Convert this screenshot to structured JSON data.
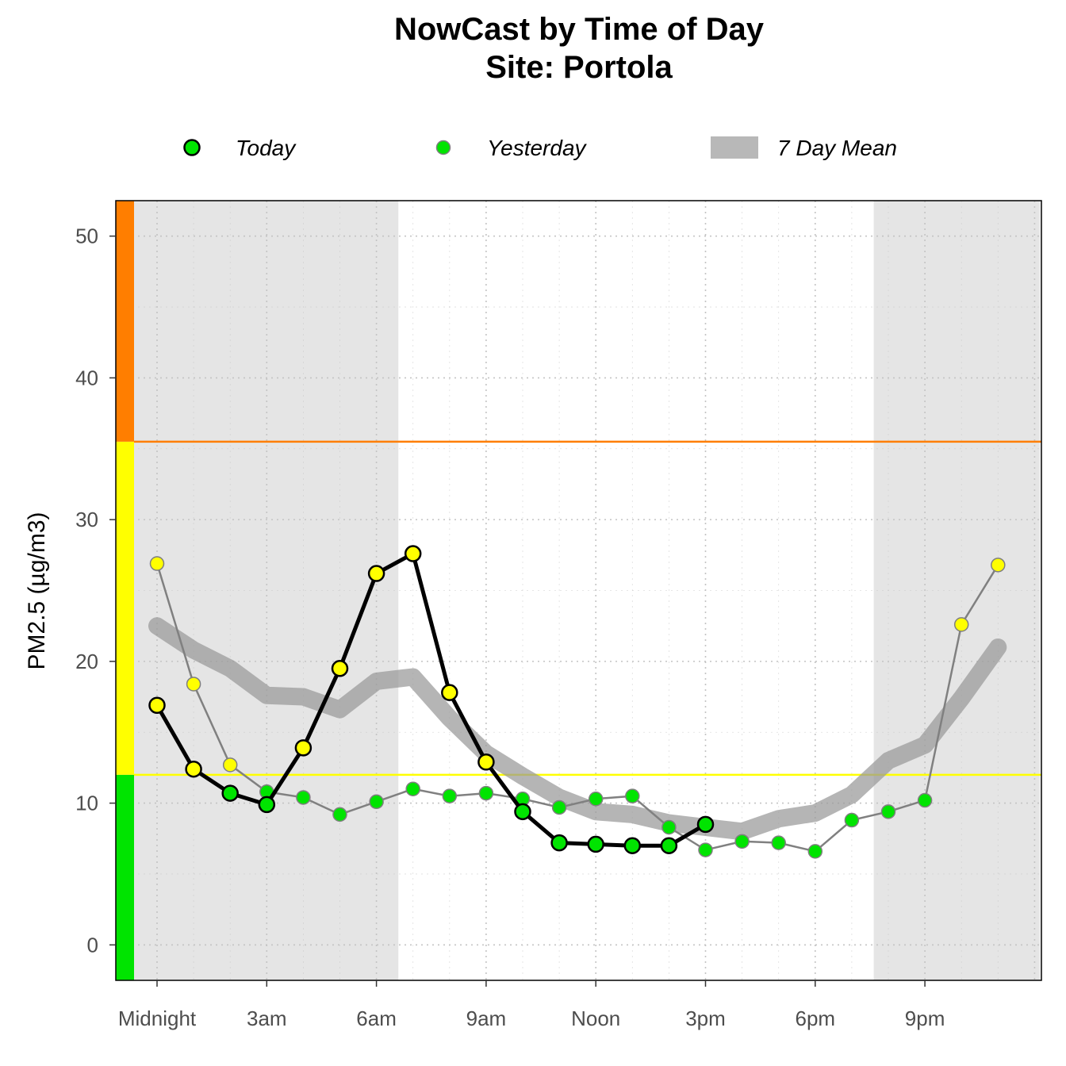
{
  "chart_data": {
    "type": "line",
    "title": "NowCast by Time of Day",
    "subtitle": "Site: Portola",
    "ylabel": "PM2.5 (µg/m3)",
    "xlabel": "",
    "ylim": [
      -2.5,
      52.5
    ],
    "yticks": [
      0,
      10,
      20,
      30,
      40,
      50
    ],
    "xticks": [
      {
        "hour": 0,
        "label": "Midnight"
      },
      {
        "hour": 3,
        "label": "3am"
      },
      {
        "hour": 6,
        "label": "6am"
      },
      {
        "hour": 9,
        "label": "9am"
      },
      {
        "hour": 12,
        "label": "Noon"
      },
      {
        "hour": 15,
        "label": "3pm"
      },
      {
        "hour": 18,
        "label": "6pm"
      },
      {
        "hour": 21,
        "label": "9pm"
      }
    ],
    "night_shading": [
      [
        -1.15,
        6.6
      ],
      [
        19.6,
        24.15
      ]
    ],
    "aqi_thresholds": [
      {
        "value": 12.0,
        "color": "#ffff00"
      },
      {
        "value": 35.5,
        "color": "#ff7e00"
      }
    ],
    "aqi_bands": [
      {
        "from": -2.5,
        "to": 12.0,
        "color": "#00e400"
      },
      {
        "from": 12.0,
        "to": 35.5,
        "color": "#ffff00"
      },
      {
        "from": 35.5,
        "to": 52.5,
        "color": "#ff7e00"
      }
    ],
    "legend": [
      {
        "label": "Today",
        "kind": "point-bold"
      },
      {
        "label": "Yesterday",
        "kind": "point"
      },
      {
        "label": "7 Day Mean",
        "kind": "band"
      }
    ],
    "series": [
      {
        "name": "7 Day Mean",
        "color": "#999999",
        "x": [
          0,
          1,
          2,
          3,
          4,
          5,
          6,
          7,
          8,
          9,
          10,
          11,
          12,
          13,
          14,
          15,
          16,
          17,
          18,
          19,
          20,
          21,
          22,
          23
        ],
        "values": [
          22.5,
          20.8,
          19.5,
          17.6,
          17.5,
          16.6,
          18.6,
          18.9,
          16.0,
          13.5,
          11.9,
          10.4,
          9.4,
          9.2,
          8.6,
          8.3,
          8.0,
          8.9,
          9.3,
          10.6,
          13.0,
          14.1,
          17.4,
          21.0
        ]
      },
      {
        "name": "Yesterday",
        "color": "#7f7f7f",
        "x": [
          0,
          1,
          2,
          3,
          4,
          5,
          6,
          7,
          8,
          9,
          10,
          11,
          12,
          13,
          14,
          15,
          16,
          17,
          18,
          19,
          20,
          21,
          22,
          23
        ],
        "values": [
          26.9,
          18.4,
          12.7,
          10.8,
          10.4,
          9.2,
          10.1,
          11.0,
          10.5,
          10.7,
          10.3,
          9.7,
          10.3,
          10.5,
          8.3,
          6.7,
          7.3,
          7.2,
          6.6,
          8.8,
          9.4,
          10.2,
          22.6,
          26.8
        ]
      },
      {
        "name": "Today",
        "color": "#000000",
        "x": [
          0,
          1,
          2,
          3,
          4,
          5,
          6,
          7,
          8,
          9,
          10,
          11,
          12,
          13,
          14,
          15
        ],
        "values": [
          16.9,
          12.4,
          10.7,
          9.9,
          13.9,
          19.5,
          26.2,
          27.6,
          17.8,
          12.9,
          9.4,
          7.2,
          7.1,
          7.0,
          7.0,
          8.5
        ]
      }
    ]
  }
}
